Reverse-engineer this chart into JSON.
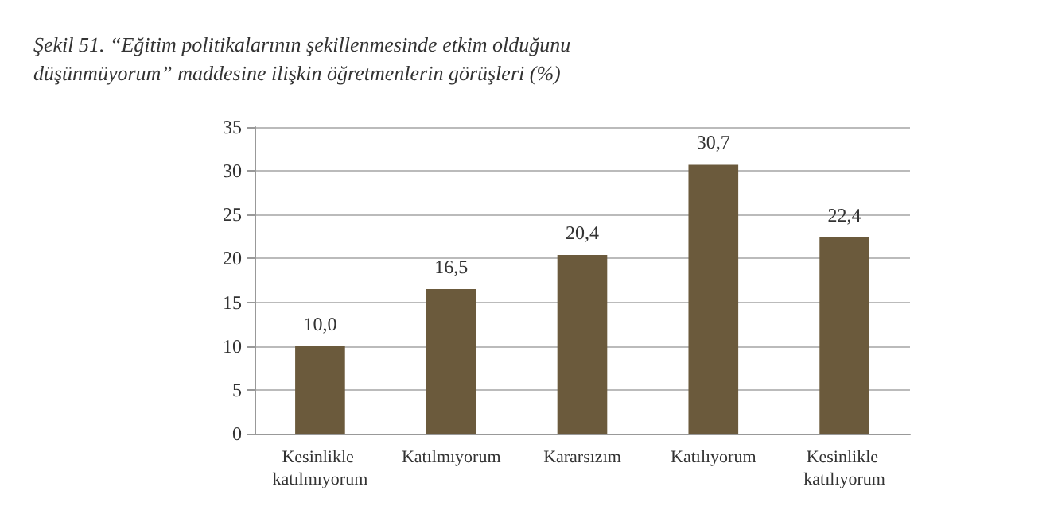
{
  "chart_data": {
    "type": "bar",
    "title": "Şekil 51. “Eğitim politikalarının şekillenmesinde etkim olduğunu düşünmüyorum” maddesine ilişkin öğretmenlerin görüşleri (%)",
    "categories": [
      "Kesinlikle katılmıyorum",
      "Katılmıyorum",
      "Kararsızım",
      "Katılıyorum",
      "Kesinlikle katılıyorum"
    ],
    "values": [
      10.0,
      16.5,
      20.4,
      30.7,
      22.4
    ],
    "value_labels": [
      "10,0",
      "16,5",
      "20,4",
      "30,7",
      "22,4"
    ],
    "color": "#6b5a3c",
    "ylim": [
      0,
      35
    ],
    "yticks": [
      0,
      5,
      10,
      15,
      20,
      25,
      30,
      35
    ],
    "grid": "y"
  }
}
